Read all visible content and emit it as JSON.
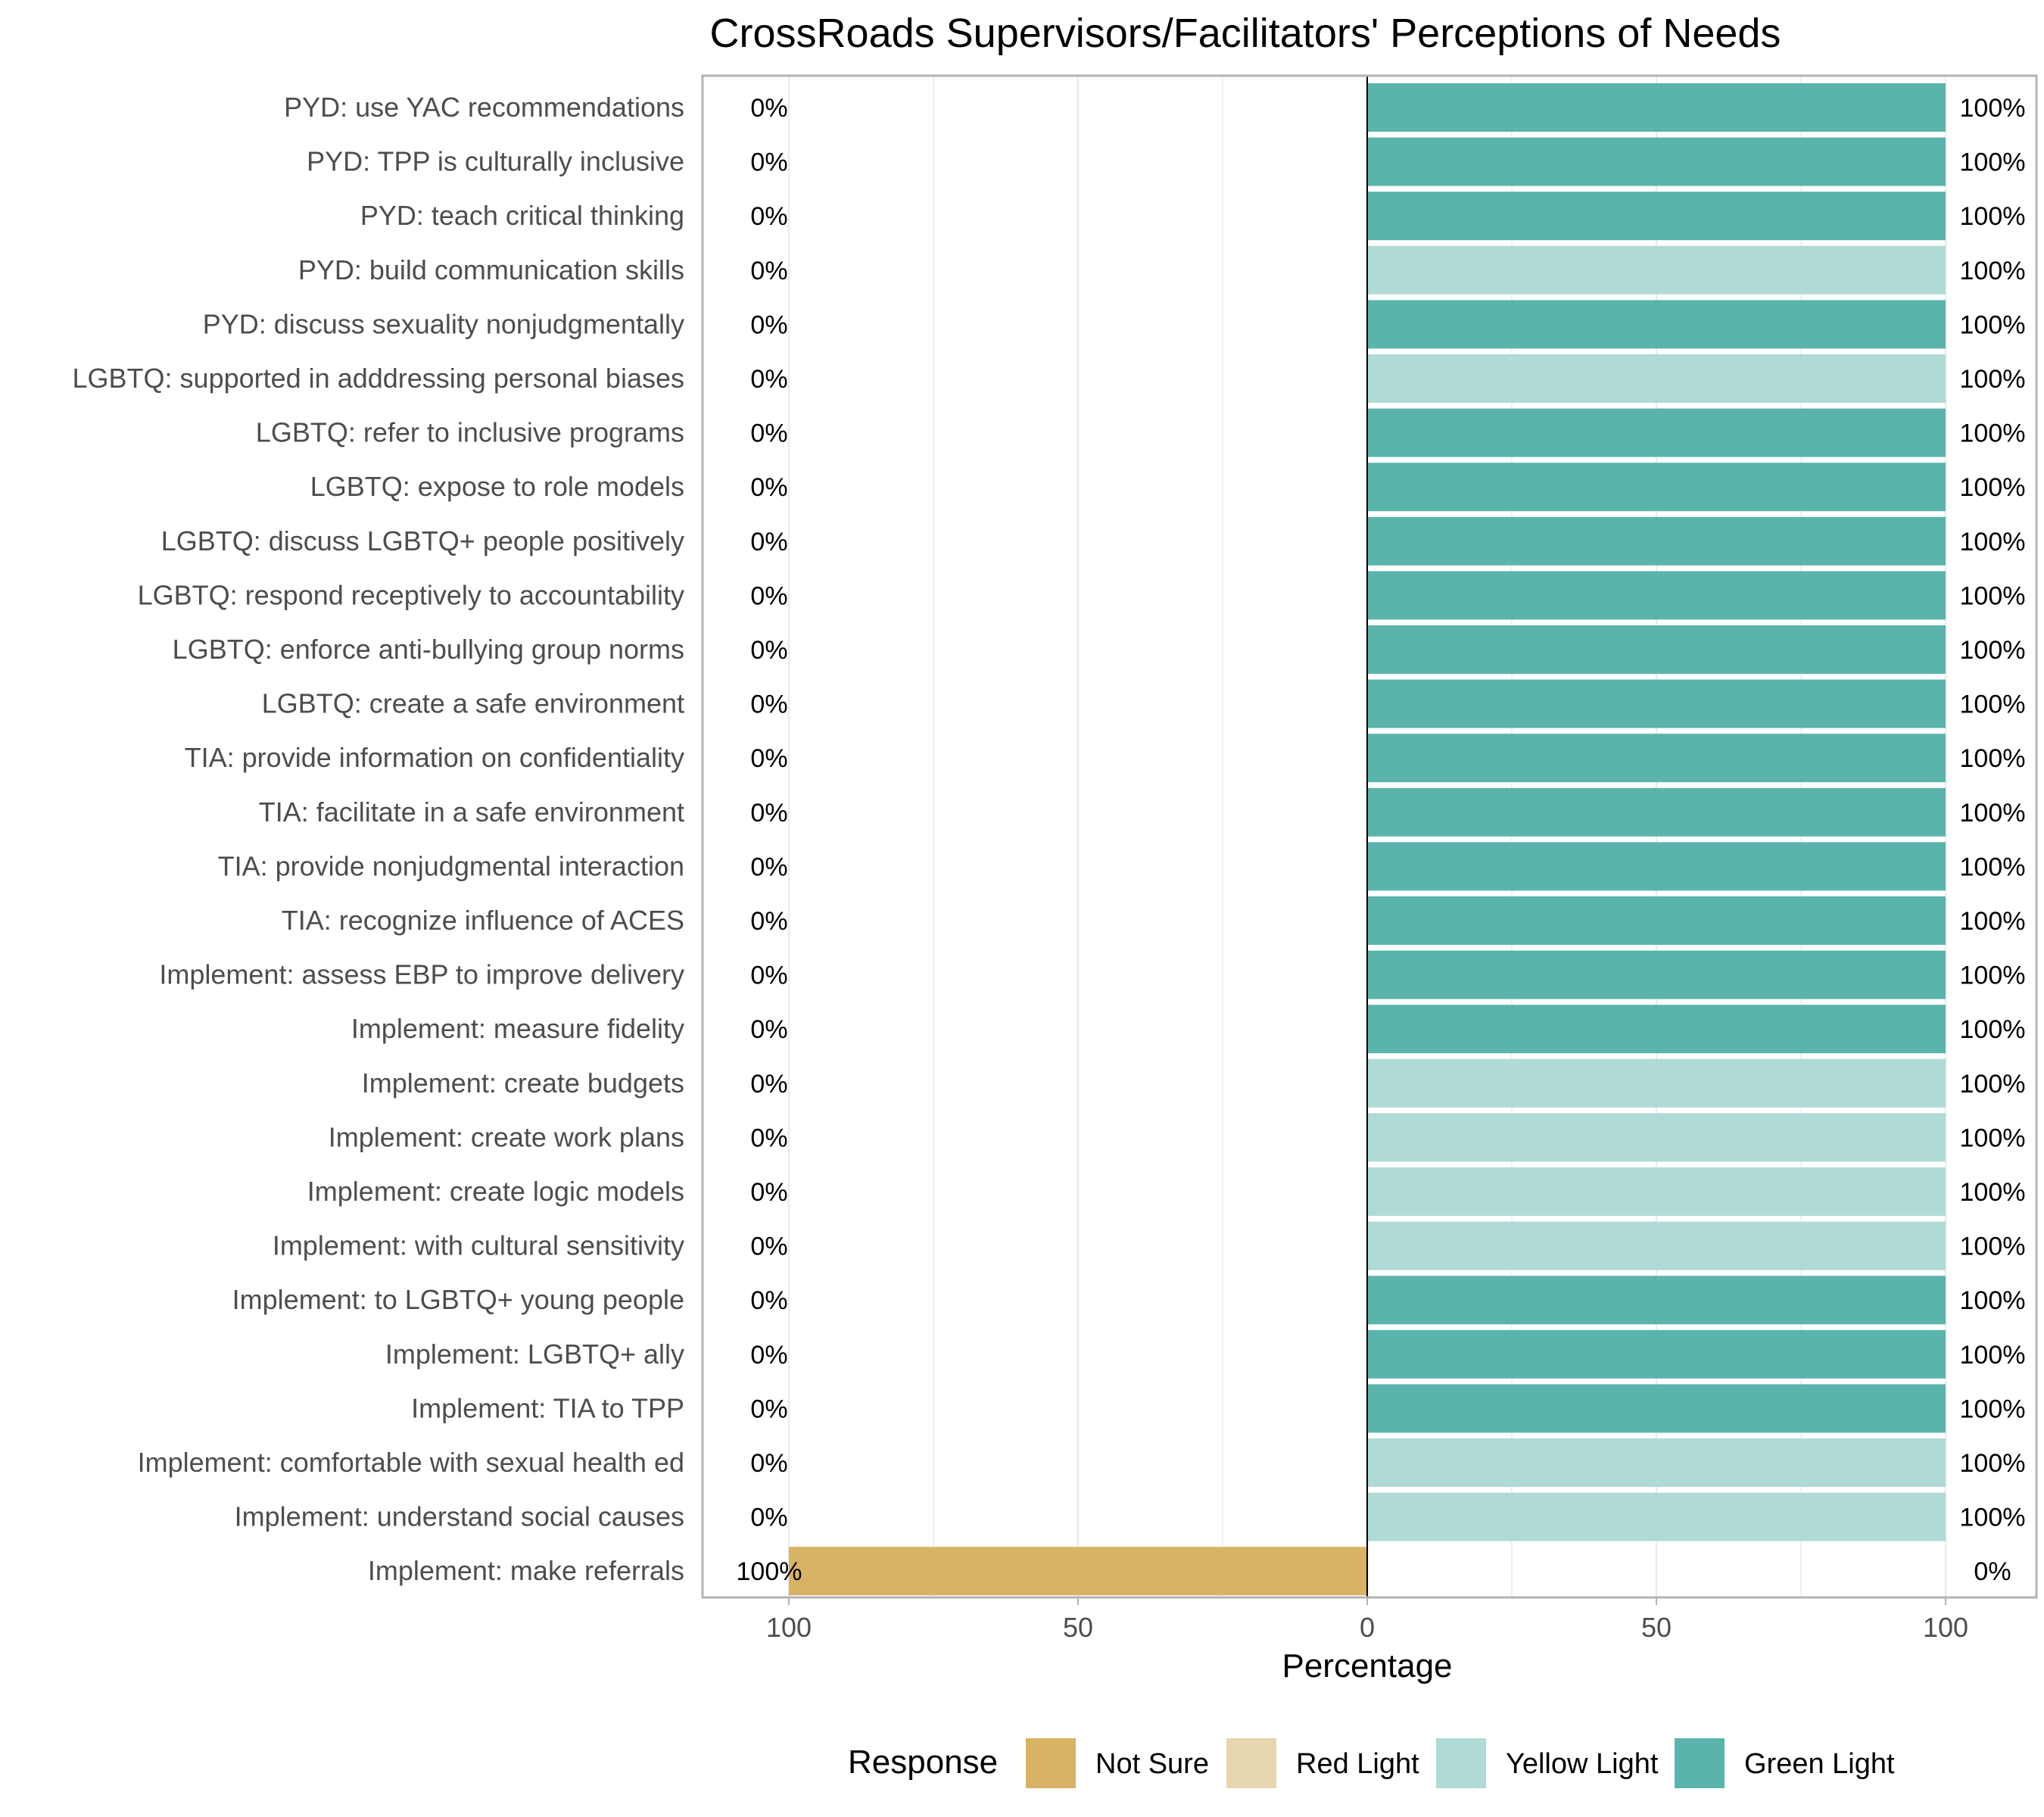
{
  "chart_data": {
    "type": "bar",
    "orientation": "horizontal-diverging",
    "title": "CrossRoads Supervisors/Facilitators' Perceptions of Needs",
    "xlabel": "Percentage",
    "ylabel": "",
    "xlim": [
      -115,
      115
    ],
    "x_ticks": [
      -100,
      -50,
      0,
      50,
      100
    ],
    "x_tick_labels": [
      "100",
      "50",
      "0",
      "50",
      "100"
    ],
    "grid": true,
    "legend": {
      "title": "Response",
      "position": "bottom",
      "entries": [
        {
          "label": "Not Sure",
          "color": "#D8B365"
        },
        {
          "label": "Red Light",
          "color": "#E8D6B0"
        },
        {
          "label": "Yellow Light",
          "color": "#AFDAD5"
        },
        {
          "label": "Green Light",
          "color": "#5AB4AC"
        }
      ]
    },
    "series_colors": {
      "Not Sure": "#D8B365",
      "Red Light": "#E8D6B0",
      "Yellow Light": "#AFDAD5",
      "Green Light": "#5AB4AC"
    },
    "categories": [
      "PYD: use YAC recommendations",
      "PYD: TPP is culturally inclusive",
      "PYD: teach critical thinking",
      "PYD: build communication skills",
      "PYD: discuss sexuality nonjudgmentally",
      "LGBTQ: supported in adddressing personal biases",
      "LGBTQ: refer to inclusive programs",
      "LGBTQ: expose to role models",
      "LGBTQ: discuss LGBTQ+ people positively",
      "LGBTQ: respond receptively to accountability",
      "LGBTQ: enforce anti-bullying group norms",
      "LGBTQ: create a safe environment",
      "TIA: provide information on confidentiality",
      "TIA: facilitate in a safe environment",
      "TIA: provide nonjudgmental interaction",
      "TIA: recognize influence of ACES",
      "Implement: assess EBP to improve delivery",
      "Implement: measure fidelity",
      "Implement: create budgets",
      "Implement: create work plans",
      "Implement: create logic models",
      "Implement: with cultural sensitivity",
      "Implement: to LGBTQ+ young people",
      "Implement: LGBTQ+ ally",
      "Implement: TIA to TPP",
      "Implement: comfortable with sexual health ed",
      "Implement: understand social causes",
      "Implement: make referrals"
    ],
    "bars": [
      {
        "response": "Green Light",
        "value": 100
      },
      {
        "response": "Green Light",
        "value": 100
      },
      {
        "response": "Green Light",
        "value": 100
      },
      {
        "response": "Yellow Light",
        "value": 100
      },
      {
        "response": "Green Light",
        "value": 100
      },
      {
        "response": "Yellow Light",
        "value": 100
      },
      {
        "response": "Green Light",
        "value": 100
      },
      {
        "response": "Green Light",
        "value": 100
      },
      {
        "response": "Green Light",
        "value": 100
      },
      {
        "response": "Green Light",
        "value": 100
      },
      {
        "response": "Green Light",
        "value": 100
      },
      {
        "response": "Green Light",
        "value": 100
      },
      {
        "response": "Green Light",
        "value": 100
      },
      {
        "response": "Green Light",
        "value": 100
      },
      {
        "response": "Green Light",
        "value": 100
      },
      {
        "response": "Green Light",
        "value": 100
      },
      {
        "response": "Green Light",
        "value": 100
      },
      {
        "response": "Green Light",
        "value": 100
      },
      {
        "response": "Yellow Light",
        "value": 100
      },
      {
        "response": "Yellow Light",
        "value": 100
      },
      {
        "response": "Yellow Light",
        "value": 100
      },
      {
        "response": "Yellow Light",
        "value": 100
      },
      {
        "response": "Green Light",
        "value": 100
      },
      {
        "response": "Green Light",
        "value": 100
      },
      {
        "response": "Green Light",
        "value": 100
      },
      {
        "response": "Yellow Light",
        "value": 100
      },
      {
        "response": "Yellow Light",
        "value": 100
      },
      {
        "response": "Not Sure",
        "value": -100
      }
    ],
    "left_labels": [
      "0%",
      "0%",
      "0%",
      "0%",
      "0%",
      "0%",
      "0%",
      "0%",
      "0%",
      "0%",
      "0%",
      "0%",
      "0%",
      "0%",
      "0%",
      "0%",
      "0%",
      "0%",
      "0%",
      "0%",
      "0%",
      "0%",
      "0%",
      "0%",
      "0%",
      "0%",
      "0%",
      "100%"
    ],
    "right_labels": [
      "100%",
      "100%",
      "100%",
      "100%",
      "100%",
      "100%",
      "100%",
      "100%",
      "100%",
      "100%",
      "100%",
      "100%",
      "100%",
      "100%",
      "100%",
      "100%",
      "100%",
      "100%",
      "100%",
      "100%",
      "100%",
      "100%",
      "100%",
      "100%",
      "100%",
      "100%",
      "100%",
      "0%"
    ]
  }
}
